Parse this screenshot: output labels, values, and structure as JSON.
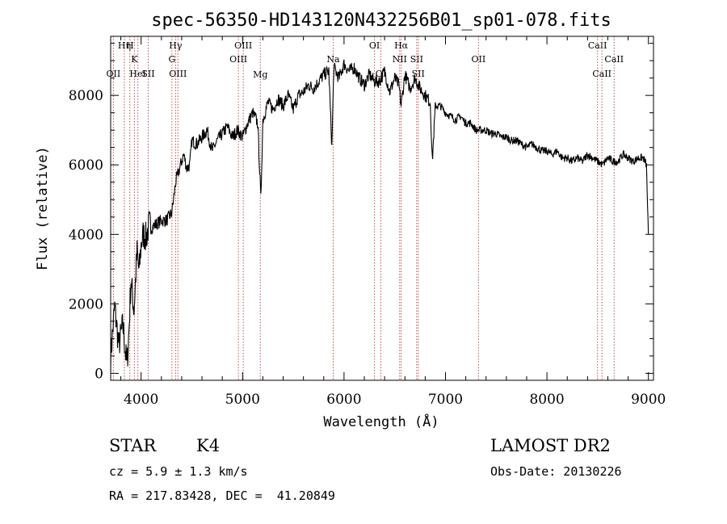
{
  "chart_data": {
    "type": "line",
    "title": "spec-56350-HD143120N432256B01_sp01-078.fits",
    "xlabel": "Wavelength (Å)",
    "ylabel": "Flux (relative)",
    "xlim": [
      3700,
      9050
    ],
    "ylim": [
      -200,
      9700
    ],
    "x_ticks": [
      4000,
      5000,
      6000,
      7000,
      8000,
      9000
    ],
    "y_ticks": [
      0,
      2000,
      4000,
      6000,
      8000
    ],
    "grid": false,
    "series": [
      {
        "color": "#000000",
        "x": [
          3700,
          3740,
          3780,
          3820,
          3860,
          3880,
          3900,
          3930,
          3960,
          3980,
          4000,
          4020,
          4050,
          4080,
          4100,
          4150,
          4200,
          4250,
          4300,
          4320,
          4340,
          4380,
          4420,
          4450,
          4480,
          4500,
          4550,
          4600,
          4650,
          4700,
          4750,
          4800,
          4850,
          4900,
          4950,
          5000,
          5050,
          5100,
          5150,
          5180,
          5200,
          5250,
          5300,
          5350,
          5400,
          5450,
          5500,
          5550,
          5600,
          5650,
          5700,
          5750,
          5800,
          5850,
          5880,
          5900,
          5950,
          6000,
          6050,
          6100,
          6150,
          6200,
          6250,
          6300,
          6350,
          6400,
          6450,
          6500,
          6540,
          6563,
          6600,
          6650,
          6700,
          6750,
          6800,
          6850,
          6870,
          6900,
          6950,
          7000,
          7050,
          7100,
          7150,
          7200,
          7250,
          7300,
          7350,
          7400,
          7450,
          7500,
          7550,
          7600,
          7650,
          7700,
          7750,
          7800,
          7850,
          7900,
          7950,
          8000,
          8050,
          8100,
          8150,
          8200,
          8250,
          8300,
          8350,
          8400,
          8450,
          8500,
          8550,
          8600,
          8650,
          8700,
          8750,
          8800,
          8850,
          8900,
          8950,
          8980,
          9000
        ],
        "y": [
          500,
          1900,
          800,
          1400,
          200,
          1200,
          2700,
          1800,
          3500,
          2900,
          3700,
          4000,
          3900,
          4300,
          4200,
          4300,
          4400,
          4400,
          4600,
          5000,
          5500,
          5900,
          6300,
          5900,
          6000,
          6700,
          6600,
          6800,
          7000,
          6400,
          6700,
          6900,
          7100,
          6800,
          7000,
          6800,
          7200,
          7500,
          7200,
          5000,
          7300,
          7800,
          7600,
          7900,
          7700,
          8000,
          7600,
          8000,
          8100,
          8300,
          8200,
          8400,
          8600,
          8700,
          6500,
          8800,
          8500,
          8900,
          8700,
          8800,
          8500,
          8300,
          8600,
          8400,
          8400,
          8700,
          8100,
          8500,
          8300,
          7700,
          8600,
          8200,
          8500,
          8200,
          8000,
          7800,
          6100,
          7700,
          7700,
          7500,
          7400,
          7300,
          7400,
          7200,
          7200,
          7000,
          7000,
          7000,
          6900,
          6900,
          6800,
          6800,
          6700,
          6700,
          6600,
          6500,
          6600,
          6500,
          6400,
          6400,
          6300,
          6400,
          6200,
          6200,
          6100,
          6200,
          6100,
          6300,
          6200,
          6100,
          6000,
          6200,
          6100,
          6100,
          6300,
          6200,
          6100,
          6200,
          6200,
          6000,
          4000
        ]
      }
    ],
    "spectral_lines": [
      {
        "label": "OII",
        "x": 3727,
        "row": 2
      },
      {
        "label": "Hη",
        "x": 3835,
        "row": 0
      },
      {
        "label": "H",
        "x": 3889,
        "row": 0
      },
      {
        "label": "K",
        "x": 3934,
        "row": 1
      },
      {
        "label": "HeI",
        "x": 3968,
        "row": 2
      },
      {
        "label": "SII",
        "x": 4070,
        "row": 2
      },
      {
        "label": "Hγ",
        "x": 4340,
        "row": 0
      },
      {
        "label": "G",
        "x": 4304,
        "row": 1
      },
      {
        "label": "OIII",
        "x": 4363,
        "row": 2
      },
      {
        "label": "OIII",
        "x": 5007,
        "row": 0
      },
      {
        "label": "OIII",
        "x": 4959,
        "row": 1
      },
      {
        "label": "Mg",
        "x": 5175,
        "row": 3
      },
      {
        "label": "Na",
        "x": 5893,
        "row": 1
      },
      {
        "label": "OI",
        "x": 6300,
        "row": 0
      },
      {
        "label": "OI",
        "x": 6363,
        "row": 2
      },
      {
        "label": "Hα",
        "x": 6563,
        "row": 0
      },
      {
        "label": "NII",
        "x": 6548,
        "row": 1
      },
      {
        "label": "SII",
        "x": 6716,
        "row": 1
      },
      {
        "label": "SII",
        "x": 6731,
        "row": 2
      },
      {
        "label": "OII",
        "x": 7325,
        "row": 1
      },
      {
        "label": "CaII",
        "x": 8498,
        "row": 0
      },
      {
        "label": "CaII",
        "x": 8542,
        "row": 2
      },
      {
        "label": "CaII",
        "x": 8662,
        "row": 1
      }
    ],
    "spectral_line_color": "#c0504d"
  },
  "info": {
    "class": "STAR",
    "subclass": "K4",
    "cz": "cz = 5.9 ± 1.3 km/s",
    "coords": "RA = 217.83428, DEC =  41.20849",
    "survey": "LAMOST DR2",
    "obs_date": "Obs-Date: 20130226"
  }
}
